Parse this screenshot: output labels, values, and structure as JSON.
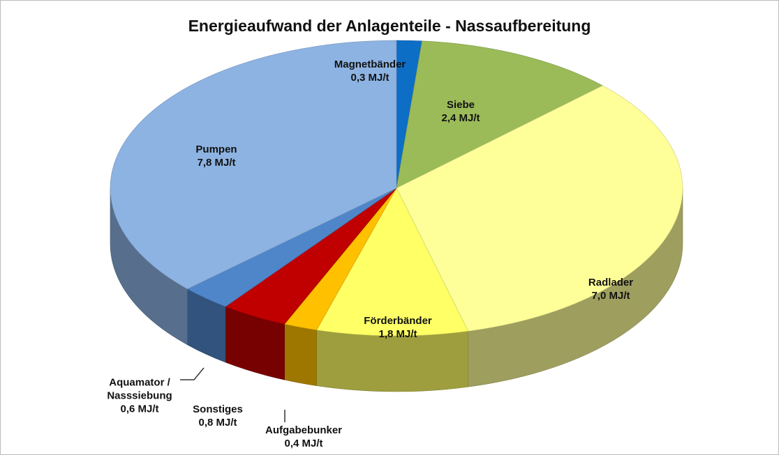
{
  "chart_data": {
    "type": "pie3d",
    "title": "Energieaufwand der Anlagenteile - Nassaufbereitung",
    "categories": [
      "Magnetbänder",
      "Siebe",
      "Radlader",
      "Förderbänder",
      "Aufgabebunker",
      "Sonstiges",
      "Aquamator / Nasssiebung",
      "Pumpen"
    ],
    "values": [
      0.3,
      2.4,
      7.0,
      1.8,
      0.4,
      0.8,
      0.6,
      7.8
    ],
    "value_labels": [
      "0,3 MJ/t",
      "2,4 MJ/t",
      "7,0 MJ/t",
      "1,8 MJ/t",
      "0,4 MJ/t",
      "0,8 MJ/t",
      "0,6 MJ/t",
      "7,8 MJ/t"
    ],
    "colors": [
      "#0d6ec6",
      "#9bbb59",
      "#ffff99",
      "#ffff66",
      "#ffc000",
      "#c00000",
      "#4f86c9",
      "#8db3e2"
    ]
  }
}
